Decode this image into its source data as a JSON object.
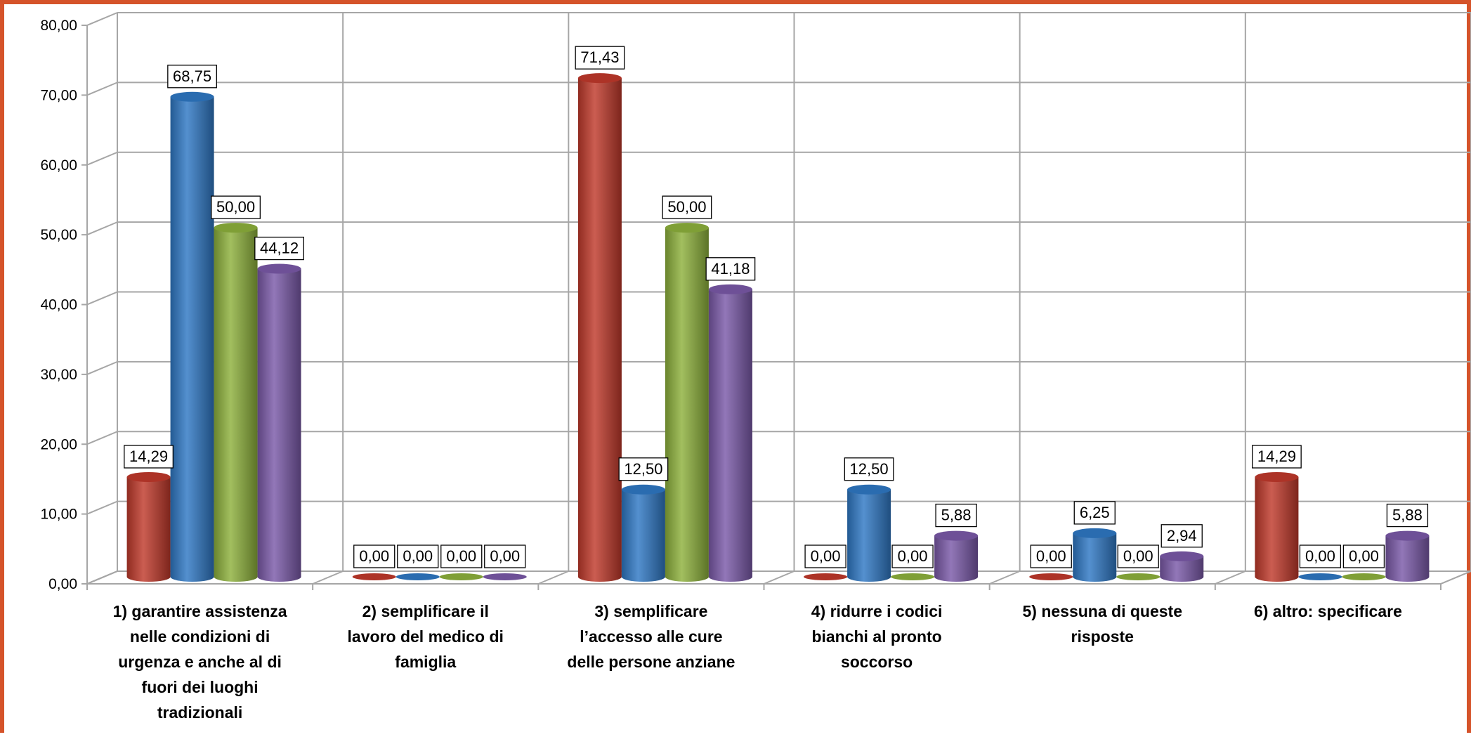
{
  "chart_data": {
    "type": "bar",
    "title": "",
    "xlabel": "",
    "ylabel": "",
    "ylim": [
      0,
      80
    ],
    "yticks": [
      "0,00",
      "10,00",
      "20,00",
      "30,00",
      "40,00",
      "50,00",
      "60,00",
      "70,00",
      "80,00"
    ],
    "grid": true,
    "legend": "none",
    "categories": [
      "1)  garantire assistenza nelle condizioni di urgenza e anche al di fuori dei luoghi tradizionali",
      "2) semplificare il lavoro del medico di famiglia",
      "3) semplificare l’accesso alle cure delle persone anziane",
      "4)  ridurre i codici bianchi al pronto soccorso",
      "5)  nessuna di queste risposte",
      "6) altro: specificare"
    ],
    "category_lines": [
      [
        "1)  garantire assistenza",
        "nelle condizioni di",
        "urgenza e anche al di",
        "fuori dei luoghi",
        "tradizionali"
      ],
      [
        "2) semplificare il",
        "lavoro del medico di",
        "famiglia"
      ],
      [
        "3) semplificare",
        "l’accesso alle cure",
        "delle persone anziane"
      ],
      [
        "4)  ridurre i codici",
        "bianchi al pronto",
        "soccorso"
      ],
      [
        "5)  nessuna di queste",
        "risposte"
      ],
      [
        "6) altro: specificare"
      ]
    ],
    "series": [
      {
        "color": "#c0392b",
        "values": [
          14.29,
          0.0,
          71.43,
          0.0,
          0.0,
          14.29
        ],
        "labels": [
          "14,29",
          "0,00",
          "71,43",
          "0,00",
          "0,00",
          "14,29"
        ]
      },
      {
        "color": "#2f78c4",
        "values": [
          68.75,
          0.0,
          12.5,
          12.5,
          6.25,
          0.0
        ],
        "labels": [
          "68,75",
          "0,00",
          "12,50",
          "12,50",
          "6,25",
          "0,00"
        ]
      },
      {
        "color": "#8db13c",
        "values": [
          50.0,
          0.0,
          50.0,
          0.0,
          0.0,
          0.0
        ],
        "labels": [
          "50,00",
          "0,00",
          "50,00",
          "0,00",
          "0,00",
          "0,00"
        ]
      },
      {
        "color": "#7a59a8",
        "values": [
          44.12,
          0.0,
          41.18,
          5.88,
          2.94,
          5.88
        ],
        "labels": [
          "44,12",
          "0,00",
          "41,18",
          "5,88",
          "2,94",
          "5,88"
        ]
      }
    ]
  }
}
